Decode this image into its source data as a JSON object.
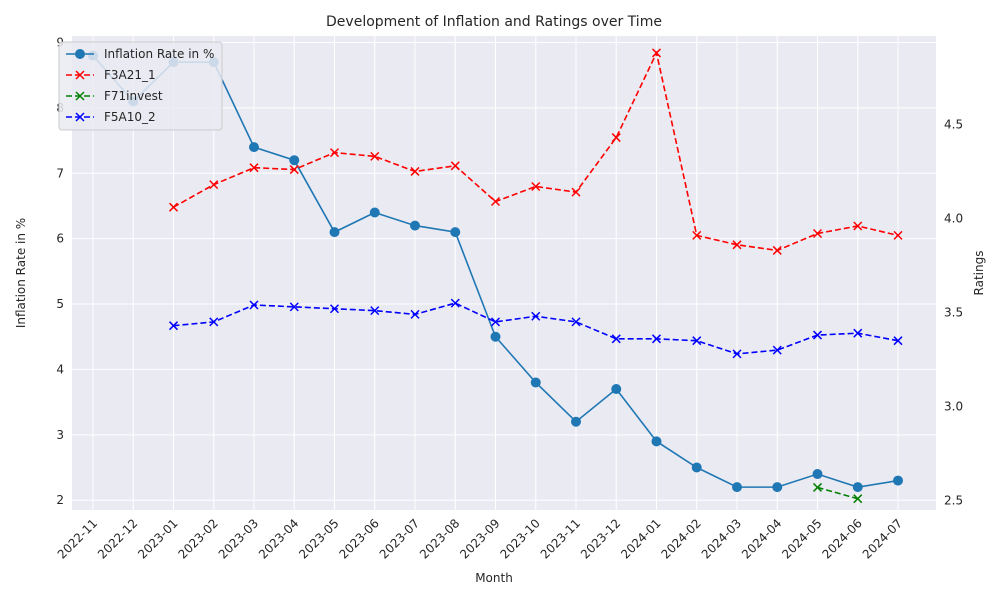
{
  "chart_data": {
    "type": "line",
    "title": "Development of Inflation and Ratings over Time",
    "xlabel": "Month",
    "ylabel_left": "Inflation Rate in %",
    "ylabel_right": "Ratings",
    "categories": [
      "2022-11",
      "2022-12",
      "2023-01",
      "2023-02",
      "2023-03",
      "2023-04",
      "2023-05",
      "2023-06",
      "2023-07",
      "2023-08",
      "2023-09",
      "2023-10",
      "2023-11",
      "2023-12",
      "2024-01",
      "2024-02",
      "2024-03",
      "2024-04",
      "2024-05",
      "2024-06",
      "2024-07"
    ],
    "ylim_left": [
      1.85,
      9.1
    ],
    "ylim_right": [
      2.45,
      4.97
    ],
    "yticks_left": [
      2,
      3,
      4,
      5,
      6,
      7,
      8,
      9
    ],
    "yticks_right": [
      2.5,
      3.0,
      3.5,
      4.0,
      4.5
    ],
    "grid": true,
    "legend_position": "upper-left",
    "series": [
      {
        "name": "Inflation Rate in %",
        "axis": "left",
        "color": "#1f77b4",
        "style": "solid",
        "marker": "circle",
        "values": [
          8.8,
          8.1,
          8.7,
          8.7,
          7.4,
          7.2,
          6.1,
          6.4,
          6.2,
          6.1,
          4.5,
          3.8,
          3.2,
          3.7,
          2.9,
          2.5,
          2.2,
          2.2,
          2.4,
          2.2,
          2.3
        ]
      },
      {
        "name": "F3A21_1",
        "axis": "right",
        "color": "#ff0000",
        "style": "dashed",
        "marker": "x",
        "values": [
          null,
          null,
          4.06,
          4.18,
          4.27,
          4.26,
          4.35,
          4.33,
          4.25,
          4.28,
          4.09,
          4.17,
          4.14,
          4.43,
          4.88,
          3.91,
          3.86,
          3.83,
          3.92,
          3.96,
          3.91
        ]
      },
      {
        "name": "F71invest",
        "axis": "right",
        "color": "#008000",
        "style": "dashed",
        "marker": "x",
        "values": [
          null,
          null,
          null,
          null,
          null,
          null,
          null,
          null,
          null,
          null,
          null,
          null,
          null,
          null,
          null,
          null,
          null,
          null,
          2.57,
          2.51,
          null
        ]
      },
      {
        "name": "F5A10_2",
        "axis": "right",
        "color": "#0000ff",
        "style": "dashed",
        "marker": "x",
        "values": [
          null,
          null,
          3.43,
          3.45,
          3.54,
          3.53,
          3.52,
          3.51,
          3.49,
          3.55,
          3.45,
          3.48,
          3.45,
          3.36,
          3.36,
          3.35,
          3.28,
          3.3,
          3.38,
          3.39,
          3.35
        ]
      }
    ]
  }
}
